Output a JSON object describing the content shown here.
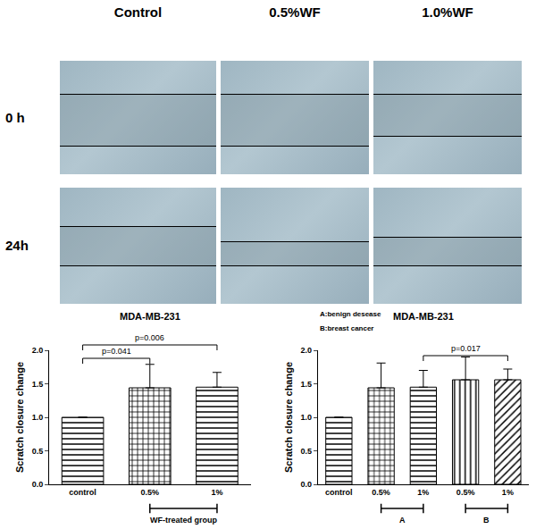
{
  "image_panels": {
    "columns": [
      "Control",
      "0.5%WF",
      "1.0%WF"
    ],
    "rows": [
      "0 h",
      "24h"
    ]
  },
  "chart_data": [
    {
      "type": "bar",
      "title": "MDA-MB-231",
      "y_label": "Scratch closure change",
      "categories": [
        "control",
        "0.5%",
        "1%"
      ],
      "values": [
        1.0,
        1.44,
        1.45
      ],
      "errors": [
        0,
        0.35,
        0.22
      ],
      "color": "#000000",
      "ylim": [
        0,
        2.0
      ],
      "yticks": [
        {
          "value": 0,
          "label": "0.0"
        },
        {
          "value": 0.5,
          "label": "0.5"
        },
        {
          "value": 1.0,
          "label": "1.0"
        },
        {
          "value": 1.5,
          "label": "1.5"
        },
        {
          "value": 2.0,
          "label": "2.0"
        }
      ],
      "grid": false,
      "comparisons": [
        {
          "from": 0,
          "to": 1,
          "label": "p=0.041"
        },
        {
          "from": 0,
          "to": 2,
          "label": "p=0.006"
        }
      ],
      "groups": [
        {
          "from": 1,
          "to": 2,
          "label": "WF-treated group"
        }
      ],
      "annotations": []
    },
    {
      "type": "bar",
      "title": "MDA-MB-231",
      "y_label": "Scratch closure change",
      "categories": [
        "control",
        "0.5%",
        "1%",
        "0.5%",
        "1%"
      ],
      "values": [
        1.0,
        1.44,
        1.45,
        1.56,
        1.56
      ],
      "errors": [
        0,
        0.37,
        0.25,
        0.34,
        0.16
      ],
      "color": "#000000",
      "ylim": [
        0,
        2.0
      ],
      "yticks": [
        {
          "value": 0,
          "label": "0.0"
        },
        {
          "value": 0.5,
          "label": "0.5"
        },
        {
          "value": 1.0,
          "label": "1.0"
        },
        {
          "value": 1.5,
          "label": "1.5"
        },
        {
          "value": 2.0,
          "label": "2.0"
        }
      ],
      "grid": false,
      "comparisons": [
        {
          "from": 2,
          "to": 4,
          "label": "p=0.017"
        }
      ],
      "groups": [
        {
          "from": 1,
          "to": 2,
          "label": "A"
        },
        {
          "from": 3,
          "to": 4,
          "label": "B"
        }
      ],
      "annotations": [
        "A:benign desease",
        "B:breast cancer"
      ]
    }
  ]
}
